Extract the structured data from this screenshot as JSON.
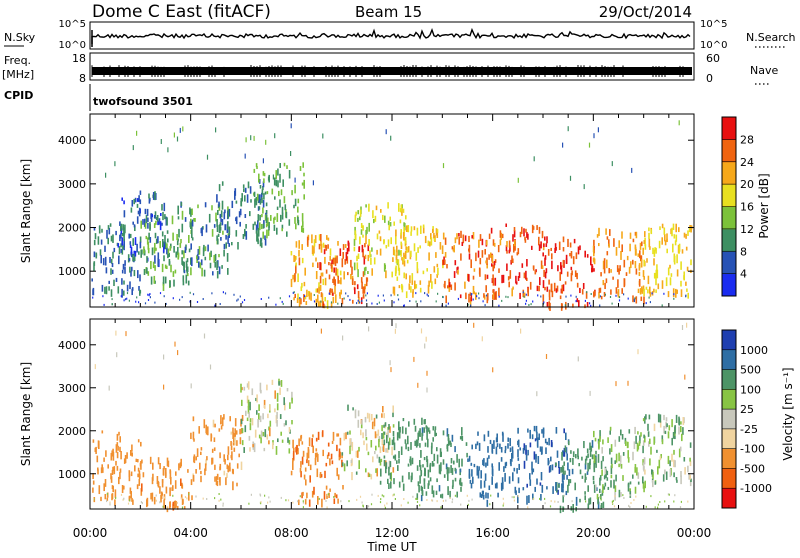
{
  "header": {
    "station": "Dome C East (fitACF)",
    "beam": "Beam 15",
    "date": "29/Oct/2014"
  },
  "summary": {
    "nsky_label": "N.Sky",
    "nsky_max": "10^5",
    "nsky_min": "10^0",
    "nsearch_label": "N.Search",
    "freq_label": "Freq.",
    "freq_unit": "[MHz]",
    "freq_max": "18",
    "freq_min": "8",
    "nave_label": "Nave",
    "nave_max": "60",
    "nave_min": "0",
    "cpid_label": "CPID",
    "cpid_value": "twofsound 3501"
  },
  "axes": {
    "x_label": "Time UT",
    "x_ticks": [
      "00:00",
      "04:00",
      "08:00",
      "12:00",
      "16:00",
      "20:00",
      "00:00"
    ],
    "y_label": "Slant Range [km]",
    "y_ticks": [
      "1000",
      "2000",
      "3000",
      "4000"
    ]
  },
  "colorbars": {
    "power": {
      "label": "Power [dB]",
      "ticks": [
        "4",
        "8",
        "12",
        "16",
        "20",
        "24",
        "28"
      ],
      "colors": [
        "#1a2cf0",
        "#2752b5",
        "#3d8f62",
        "#7cc23a",
        "#e8e020",
        "#f6a81a",
        "#f06410",
        "#e81010"
      ]
    },
    "velocity": {
      "label": "Velocity [m s⁻¹]",
      "ticks": [
        "1000",
        "500",
        "100",
        "25",
        "-25",
        "-100",
        "-500",
        "-1000"
      ],
      "colors": [
        "#1f3fb0",
        "#2e6ea4",
        "#4d9466",
        "#88c444",
        "#c8c8bc",
        "#f0d4a0",
        "#f09030",
        "#f06010",
        "#e81010"
      ]
    }
  },
  "chart_data": [
    {
      "type": "heatmap",
      "title": "Dome C East (fitACF) Beam 15 29/Oct/2014",
      "xlabel": "Time UT",
      "ylabel": "Slant Range [km]",
      "xlim": [
        0,
        24
      ],
      "ylim": [
        180,
        4600
      ],
      "colorbar_label": "Power [dB]",
      "colorbar_ticks": [
        4,
        8,
        12,
        16,
        20,
        24,
        28
      ],
      "series": [
        {
          "x": 1.0,
          "y": 1300,
          "value": 8
        },
        {
          "x": 2.0,
          "y": 2050,
          "value": 6
        },
        {
          "x": 3.0,
          "y": 1500,
          "value": 12
        },
        {
          "x": 4.5,
          "y": 1800,
          "value": 10
        },
        {
          "x": 6.0,
          "y": 2400,
          "value": 8
        },
        {
          "x": 7.5,
          "y": 2700,
          "value": 12
        },
        {
          "x": 9.0,
          "y": 1100,
          "value": 22
        },
        {
          "x": 10.0,
          "y": 900,
          "value": 26
        },
        {
          "x": 11.5,
          "y": 1800,
          "value": 18
        },
        {
          "x": 13.0,
          "y": 1300,
          "value": 20
        },
        {
          "x": 15.0,
          "y": 1200,
          "value": 26
        },
        {
          "x": 17.0,
          "y": 1300,
          "value": 27
        },
        {
          "x": 19.0,
          "y": 1000,
          "value": 28
        },
        {
          "x": 21.0,
          "y": 1200,
          "value": 24
        },
        {
          "x": 23.0,
          "y": 1300,
          "value": 20
        }
      ]
    },
    {
      "type": "heatmap",
      "xlabel": "Time UT",
      "ylabel": "Slant Range [km]",
      "xlim": [
        0,
        24
      ],
      "ylim": [
        180,
        4600
      ],
      "colorbar_label": "Velocity [m s⁻¹]",
      "colorbar_ticks": [
        1000,
        500,
        100,
        25,
        -25,
        -100,
        -500,
        -1000
      ],
      "series": [
        {
          "x": 1.0,
          "y": 1200,
          "value": -300
        },
        {
          "x": 3.0,
          "y": 600,
          "value": -400
        },
        {
          "x": 5.0,
          "y": 1600,
          "value": -200
        },
        {
          "x": 7.0,
          "y": 2400,
          "value": 0
        },
        {
          "x": 9.0,
          "y": 1200,
          "value": -450
        },
        {
          "x": 11.0,
          "y": 1800,
          "value": 0
        },
        {
          "x": 12.5,
          "y": 1500,
          "value": 300
        },
        {
          "x": 14.0,
          "y": 1300,
          "value": 400
        },
        {
          "x": 16.0,
          "y": 1200,
          "value": 700
        },
        {
          "x": 18.0,
          "y": 1300,
          "value": 900
        },
        {
          "x": 19.5,
          "y": 1000,
          "value": 400
        },
        {
          "x": 21.0,
          "y": 1300,
          "value": 100
        },
        {
          "x": 23.0,
          "y": 1600,
          "value": 80
        }
      ]
    }
  ]
}
